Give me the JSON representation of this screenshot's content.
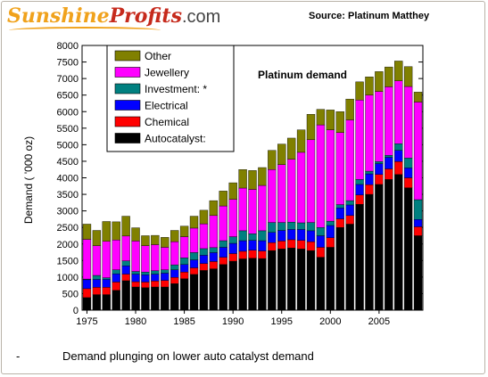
{
  "header": {
    "logo_part1": "Sunshine",
    "logo_part2": "Profits",
    "logo_part3": ".com",
    "source": "Source: Platinum Matthey"
  },
  "caption": {
    "bullet": "-",
    "text": "Demand plunging on lower auto catalyst demand"
  },
  "chart_data": {
    "type": "bar",
    "stacked": true,
    "title": "Platinum demand",
    "ylabel": "Demand ( '000 oz)",
    "xlabel": "",
    "ylim": [
      0,
      8000
    ],
    "yticks": [
      0,
      500,
      1000,
      1500,
      2000,
      2500,
      3000,
      3500,
      4000,
      4500,
      5000,
      5500,
      6000,
      6500,
      7000,
      7500,
      8000
    ],
    "xticks": [
      "1975",
      "1980",
      "1985",
      "1990",
      "1995",
      "2000",
      "2005"
    ],
    "legend_position": "top-left",
    "categories": [
      1975,
      1976,
      1977,
      1978,
      1979,
      1980,
      1981,
      1982,
      1983,
      1984,
      1985,
      1986,
      1987,
      1988,
      1989,
      1990,
      1991,
      1992,
      1993,
      1994,
      1995,
      1996,
      1997,
      1998,
      1999,
      2000,
      2001,
      2002,
      2003,
      2004,
      2005,
      2006,
      2007,
      2008,
      2009
    ],
    "series": [
      {
        "name": "Autocatalyst:",
        "color": "#000000",
        "values": [
          380,
          470,
          470,
          600,
          890,
          700,
          680,
          700,
          700,
          800,
          950,
          1080,
          1200,
          1250,
          1380,
          1480,
          1550,
          1570,
          1560,
          1800,
          1850,
          1880,
          1850,
          1800,
          1600,
          1900,
          2500,
          2600,
          3200,
          3500,
          3800,
          3950,
          4100,
          3700,
          2250
        ]
      },
      {
        "name": "Chemical",
        "color": "#ff0000",
        "values": [
          270,
          220,
          220,
          250,
          200,
          160,
          170,
          180,
          200,
          190,
          200,
          200,
          210,
          220,
          220,
          230,
          230,
          240,
          230,
          240,
          240,
          250,
          260,
          270,
          300,
          290,
          260,
          260,
          280,
          290,
          300,
          320,
          390,
          300,
          270
        ]
      },
      {
        "name": "Electrical",
        "color": "#0000ff",
        "values": [
          270,
          240,
          240,
          250,
          250,
          230,
          220,
          210,
          220,
          230,
          230,
          240,
          250,
          270,
          300,
          310,
          320,
          300,
          310,
          310,
          320,
          310,
          330,
          330,
          350,
          370,
          330,
          320,
          320,
          330,
          330,
          350,
          340,
          300,
          220
        ]
      },
      {
        "name": "Investment: *",
        "color": "#008080",
        "values": [
          20,
          120,
          50,
          120,
          150,
          80,
          80,
          100,
          100,
          150,
          200,
          220,
          200,
          150,
          200,
          200,
          300,
          200,
          300,
          300,
          240,
          220,
          200,
          250,
          250,
          130,
          100,
          130,
          150,
          80,
          60,
          60,
          200,
          300,
          600
        ]
      },
      {
        "name": "Jewellery",
        "color": "#ff00ff",
        "values": [
          1200,
          900,
          1100,
          900,
          750,
          920,
          800,
          790,
          680,
          700,
          640,
          740,
          750,
          970,
          1050,
          1130,
          1290,
          1340,
          1370,
          1600,
          1750,
          1900,
          2130,
          2500,
          3100,
          2760,
          2180,
          2440,
          2400,
          2300,
          2120,
          2070,
          1900,
          2160,
          2950
        ]
      },
      {
        "name": "Other",
        "color": "#808000",
        "values": [
          460,
          460,
          600,
          550,
          600,
          400,
          300,
          280,
          300,
          340,
          320,
          360,
          410,
          450,
          450,
          500,
          560,
          570,
          540,
          580,
          620,
          640,
          680,
          770,
          470,
          600,
          630,
          630,
          550,
          550,
          600,
          600,
          600,
          600,
          300
        ]
      }
    ]
  }
}
